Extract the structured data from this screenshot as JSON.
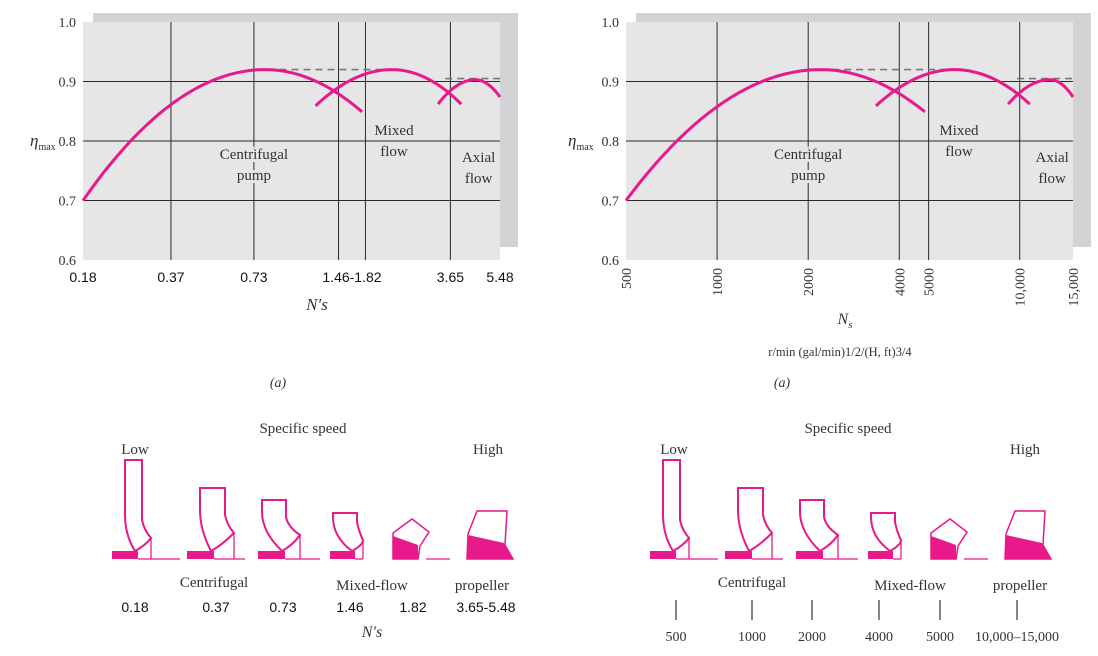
{
  "chart_data": [
    {
      "type": "line",
      "xscale": "log",
      "xlim": [
        0.18,
        5.48
      ],
      "ylim": [
        0.6,
        1.0
      ],
      "grid": true,
      "ylabel_main": "η",
      "ylabel_sub": "max",
      "xlabel": "N′s",
      "xlabel_sub": "",
      "caption": "(a)",
      "yticks": [
        1.0,
        0.9,
        0.8,
        0.7,
        0.6
      ],
      "ytick_labels": [
        "1.0",
        "0.9",
        "0.8",
        "0.7",
        "0.6"
      ],
      "xgrid": [
        0.37,
        0.73,
        1.46,
        1.82,
        3.65
      ],
      "xtick_labels": [
        {
          "x": 0.18,
          "label": "0.18"
        },
        {
          "x": 0.37,
          "label": "0.37"
        },
        {
          "x": 0.73,
          "label": "0.73"
        },
        {
          "x": 1.63,
          "label": "1.46-1.82"
        },
        {
          "x": 3.65,
          "label": "3.65"
        },
        {
          "x": 5.48,
          "label": "5.48"
        }
      ],
      "series": [
        {
          "name_lines": [
            "Centrifugal",
            "pump"
          ],
          "label_at": [
            0.73,
            0.77
          ],
          "start": [
            0.18,
            0.7
          ],
          "peak": [
            0.8,
            0.92
          ],
          "end": [
            1.77,
            0.849
          ]
        },
        {
          "name_lines": [
            "Mixed",
            "flow"
          ],
          "label_at": [
            2.3,
            0.81
          ],
          "start": [
            1.21,
            0.859
          ],
          "peak": [
            2.26,
            0.92
          ],
          "end": [
            3.99,
            0.862
          ]
        },
        {
          "name_lines": [
            "Axial",
            "flow"
          ],
          "label_at": [
            4.6,
            0.765
          ],
          "start": [
            3.3,
            0.862
          ],
          "peak": [
            4.47,
            0.903
          ],
          "end": [
            5.48,
            0.874
          ]
        }
      ],
      "envelope_dashed": [
        {
          "x": [
            0.9,
            2.26
          ],
          "y": 0.92
        },
        {
          "x": [
            3.5,
            5.48
          ],
          "y": 0.905
        }
      ],
      "color": "#e8198b"
    },
    {
      "type": "line",
      "xscale": "log",
      "xlim": [
        500,
        15000
      ],
      "ylim": [
        0.6,
        1.0
      ],
      "grid": true,
      "ylabel_main": "η",
      "ylabel_sub": "max",
      "xlabel": "N",
      "xlabel_subscript": "s",
      "units": "r/min (gal/min)1/2/(H, ft)3/4",
      "caption": "(a)",
      "yticks": [
        1.0,
        0.9,
        0.8,
        0.7,
        0.6
      ],
      "ytick_labels": [
        "1.0",
        "0.9",
        "0.8",
        "0.7",
        "0.6"
      ],
      "xgrid": [
        1000,
        2000,
        4000,
        5000,
        10000
      ],
      "xtick_labels": [
        {
          "x": 500,
          "label": "500"
        },
        {
          "x": 1000,
          "label": "1000"
        },
        {
          "x": 2000,
          "label": "2000"
        },
        {
          "x": 4000,
          "label": "4000"
        },
        {
          "x": 5000,
          "label": "5000"
        },
        {
          "x": 10000,
          "label": "10,000"
        },
        {
          "x": 15000,
          "label": "15,000"
        }
      ],
      "series": [
        {
          "name_lines": [
            "Centrifugal",
            "pump"
          ],
          "label_at": [
            2000,
            0.77
          ],
          "start": [
            500,
            0.7
          ],
          "peak": [
            2200,
            0.92
          ],
          "end": [
            4860,
            0.849
          ]
        },
        {
          "name_lines": [
            "Mixed",
            "flow"
          ],
          "label_at": [
            6300,
            0.81
          ],
          "start": [
            3350,
            0.859
          ],
          "peak": [
            6100,
            0.92
          ],
          "end": [
            10800,
            0.862
          ]
        },
        {
          "name_lines": [
            "Axial",
            "flow"
          ],
          "label_at": [
            12800,
            0.765
          ],
          "start": [
            9160,
            0.862
          ],
          "peak": [
            12600,
            0.903
          ],
          "end": [
            15000,
            0.874
          ]
        }
      ],
      "envelope_dashed": [
        {
          "x": [
            2400,
            6100
          ],
          "y": 0.92
        },
        {
          "x": [
            9800,
            15000
          ],
          "y": 0.905
        }
      ],
      "color": "#e8198b"
    }
  ],
  "impellers": {
    "left": {
      "title": "Specific speed",
      "low": "Low",
      "high": "High",
      "categories": [
        "Centrifugal",
        "Mixed-flow",
        "propeller"
      ],
      "values": [
        "0.18",
        "0.37",
        "0.73",
        "1.46",
        "1.82",
        "3.65-5.48"
      ],
      "axis_label": "N′s"
    },
    "right": {
      "title": "Specific speed",
      "low": "Low",
      "high": "High",
      "categories": [
        "Centrifugal",
        "Mixed-flow",
        "propeller"
      ],
      "values": [
        "500",
        "1000",
        "2000",
        "4000",
        "5000",
        "10,000–15,000"
      ]
    }
  }
}
